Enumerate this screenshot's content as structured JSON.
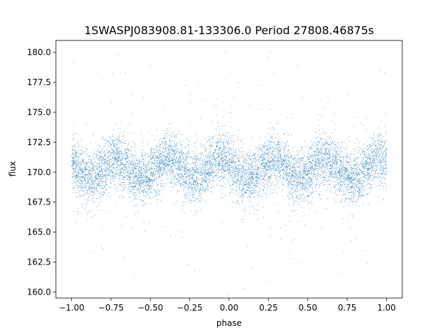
{
  "chart_data": {
    "type": "scatter",
    "title": "1SWASPJ083908.81-133306.0 Period 27808.46875s",
    "xlabel": "phase",
    "ylabel": "flux",
    "xlim": [
      -1.1,
      1.1
    ],
    "ylim": [
      159.5,
      181.0
    ],
    "xticks": [
      -1.0,
      -0.75,
      -0.5,
      -0.25,
      0.0,
      0.25,
      0.5,
      0.75,
      1.0
    ],
    "xtick_labels": [
      "−1.00",
      "−0.75",
      "−0.50",
      "−0.25",
      "0.00",
      "0.25",
      "0.50",
      "0.75",
      "1.00"
    ],
    "yticks": [
      160.0,
      162.5,
      165.0,
      167.5,
      170.0,
      172.5,
      175.0,
      177.5,
      180.0
    ],
    "ytick_labels": [
      "160.0",
      "162.5",
      "165.0",
      "167.5",
      "170.0",
      "172.5",
      "175.0",
      "177.5",
      "180.0"
    ],
    "grid": false,
    "legend": "none",
    "marker_color": "#1f77b4",
    "series": [
      {
        "x_range": [
          -1.0,
          1.0
        ],
        "mean_flux": 170.3,
        "amplitude": 0.8,
        "cycles_per_phase_unit": 3,
        "scatter_sigma": 1.5
      }
    ]
  }
}
